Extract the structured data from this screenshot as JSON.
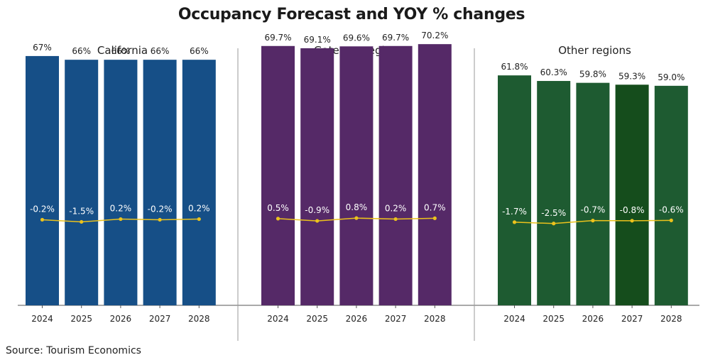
{
  "title": "Occupancy Forecast and YOY % changes",
  "source": "Source: Tourism Economics",
  "colors": {
    "line": "#ecc21c",
    "axis": "#555555",
    "divider": "#999999"
  },
  "chart_data": [
    {
      "type": "bar",
      "title": "California",
      "categories": [
        "2024",
        "2025",
        "2026",
        "2027",
        "2028"
      ],
      "values": [
        67,
        66,
        66,
        66,
        66
      ],
      "value_labels": [
        "67%",
        "66%",
        "66%",
        "66%",
        "66%"
      ],
      "bar_colors": [
        "#164f87",
        "#164f87",
        "#164f87",
        "#164f87",
        "#164f87"
      ],
      "yoy": [
        -0.2,
        -1.5,
        0.2,
        -0.2,
        0.2
      ],
      "yoy_labels": [
        "-0.2%",
        "-1.5%",
        "0.2%",
        "-0.2%",
        "0.2%"
      ],
      "ylim": [
        0,
        75
      ]
    },
    {
      "type": "bar",
      "title": "Gateway regions",
      "categories": [
        "2024",
        "2025",
        "2026",
        "2027",
        "2028"
      ],
      "values": [
        69.7,
        69.1,
        69.6,
        69.7,
        70.2
      ],
      "value_labels": [
        "69.7%",
        "69.1%",
        "69.6%",
        "69.7%",
        "70.2%"
      ],
      "bar_colors": [
        "#552967",
        "#552967",
        "#552967",
        "#552967",
        "#552967"
      ],
      "yoy": [
        0.5,
        -0.9,
        0.8,
        0.2,
        0.7
      ],
      "yoy_labels": [
        "0.5%",
        "-0.9%",
        "0.8%",
        "0.2%",
        "0.7%"
      ],
      "ylim": [
        0,
        75
      ]
    },
    {
      "type": "bar",
      "title": "Other regions",
      "categories": [
        "2024",
        "2025",
        "2026",
        "2027",
        "2028"
      ],
      "values": [
        61.8,
        60.3,
        59.8,
        59.3,
        59.0
      ],
      "value_labels": [
        "61.8%",
        "60.3%",
        "59.8%",
        "59.3%",
        "59.0%"
      ],
      "bar_colors": [
        "#1e5b31",
        "#1e5b31",
        "#1e5b31",
        "#154d1c",
        "#1e5b31"
      ],
      "yoy": [
        -1.7,
        -2.5,
        -0.7,
        -0.8,
        -0.6
      ],
      "yoy_labels": [
        "-1.7%",
        "-2.5%",
        "-0.7%",
        "-0.8%",
        "-0.6%"
      ],
      "ylim": [
        0,
        75
      ]
    }
  ]
}
